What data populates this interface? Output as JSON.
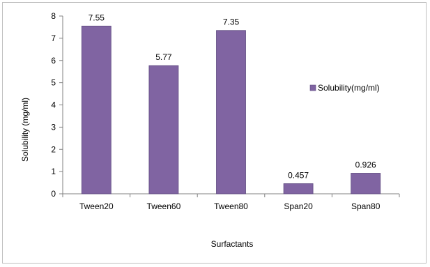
{
  "chart_data": {
    "type": "bar",
    "categories": [
      "Tween20",
      "Tween60",
      "Tween80",
      "Span20",
      "Span80"
    ],
    "series": [
      {
        "name": "Solubility(mg/ml)",
        "values": [
          7.55,
          5.77,
          7.35,
          0.457,
          0.926
        ]
      }
    ],
    "data_labels": [
      "7.55",
      "5.77",
      "7.35",
      "0.457",
      "0.926"
    ],
    "xlabel": "Surfactants",
    "ylabel": "Solubility (mg/ml)",
    "ylim": [
      0,
      8
    ],
    "yticks": [
      0,
      1,
      2,
      3,
      4,
      5,
      6,
      7,
      8
    ],
    "grid": false,
    "legend_position": "right",
    "colors": {
      "bar": "#8064a2",
      "bar_border": "#5f4b80",
      "axis": "#808080",
      "frame": "#bfbfbf"
    }
  }
}
